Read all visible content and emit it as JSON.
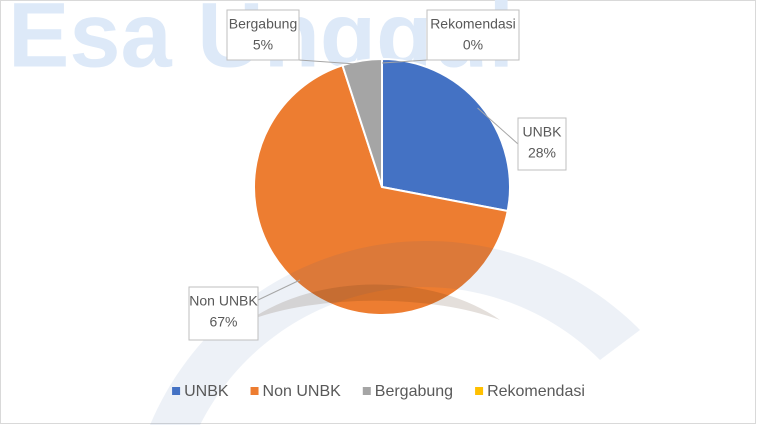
{
  "watermark": "Esa Unggul",
  "chart_data": {
    "type": "pie",
    "categories": [
      "UNBK",
      "Non UNBK",
      "Bergabung",
      "Rekomendasi"
    ],
    "values": [
      28,
      67,
      5,
      0
    ],
    "value_labels": [
      "28%",
      "67%",
      "5%",
      "0%"
    ],
    "colors": [
      "#4472c4",
      "#ed7d31",
      "#a5a5a5",
      "#ffc000"
    ],
    "legend": "bottom"
  }
}
